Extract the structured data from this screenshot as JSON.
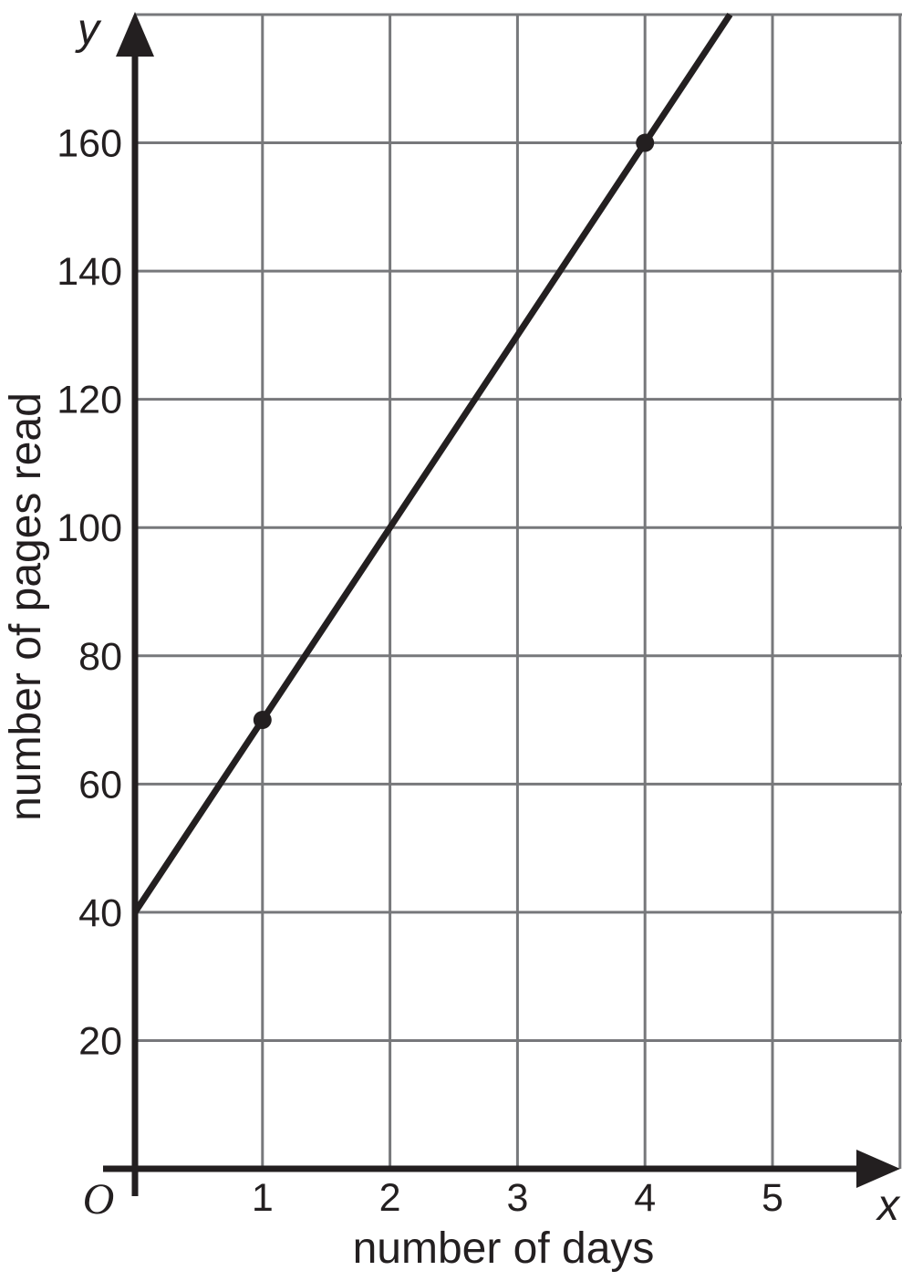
{
  "chart_data": {
    "type": "line",
    "title": "",
    "xlabel": "number of days",
    "ylabel": "number of pages read",
    "x_axis_letter": "x",
    "y_axis_letter": "y",
    "origin_label": "O",
    "xlim": [
      0,
      6
    ],
    "ylim": [
      0,
      180
    ],
    "x_ticks": [
      1,
      2,
      3,
      4,
      5
    ],
    "y_ticks": [
      20,
      40,
      60,
      80,
      100,
      120,
      140,
      160
    ],
    "x_gridlines": [
      1,
      2,
      3,
      4,
      5,
      6
    ],
    "y_gridlines": [
      20,
      40,
      60,
      80,
      100,
      120,
      140,
      160,
      180
    ],
    "grid": true,
    "legend": false,
    "line": {
      "slope": 30,
      "intercept": 40,
      "x_start": 0,
      "x_end": 4.6667,
      "equation": "y = 40 + 30x"
    },
    "marked_points": [
      {
        "x": 1,
        "y": 70
      },
      {
        "x": 4,
        "y": 160
      }
    ],
    "colors": {
      "axis": "#231f20",
      "grid": "#77787b",
      "line": "#231f20",
      "point": "#231f20",
      "text": "#231f20"
    }
  }
}
